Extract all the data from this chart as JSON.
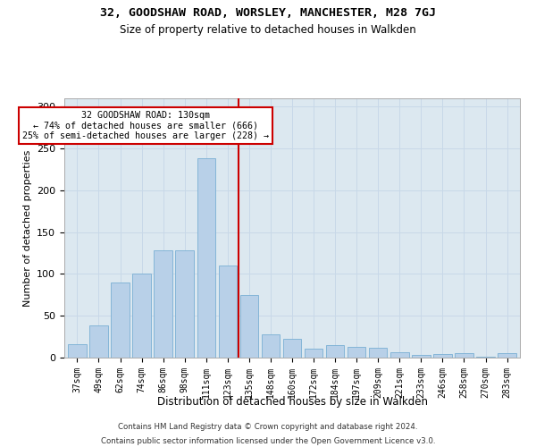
{
  "title_line1": "32, GOODSHAW ROAD, WORSLEY, MANCHESTER, M28 7GJ",
  "title_line2": "Size of property relative to detached houses in Walkden",
  "xlabel": "Distribution of detached houses by size in Walkden",
  "ylabel": "Number of detached properties",
  "categories": [
    "37sqm",
    "49sqm",
    "62sqm",
    "74sqm",
    "86sqm",
    "98sqm",
    "111sqm",
    "123sqm",
    "135sqm",
    "148sqm",
    "160sqm",
    "172sqm",
    "184sqm",
    "197sqm",
    "209sqm",
    "221sqm",
    "233sqm",
    "246sqm",
    "258sqm",
    "270sqm",
    "283sqm"
  ],
  "values": [
    16,
    39,
    90,
    101,
    128,
    128,
    238,
    110,
    75,
    28,
    22,
    11,
    15,
    13,
    12,
    6,
    3,
    4,
    5,
    1,
    5
  ],
  "bar_color": "#b8d0e8",
  "bar_edge_color": "#7aafd4",
  "annotation_line1": "32 GOODSHAW ROAD: 130sqm",
  "annotation_line2": "← 74% of detached houses are smaller (666)",
  "annotation_line3": "25% of semi-detached houses are larger (228) →",
  "annotation_box_color": "#ffffff",
  "annotation_box_edge": "#cc0000",
  "vline_color": "#cc0000",
  "grid_color": "#c8d8e8",
  "bg_color": "#dce8f0",
  "ylim": [
    0,
    310
  ],
  "yticks": [
    0,
    50,
    100,
    150,
    200,
    250,
    300
  ],
  "footnote1": "Contains HM Land Registry data © Crown copyright and database right 2024.",
  "footnote2": "Contains public sector information licensed under the Open Government Licence v3.0."
}
